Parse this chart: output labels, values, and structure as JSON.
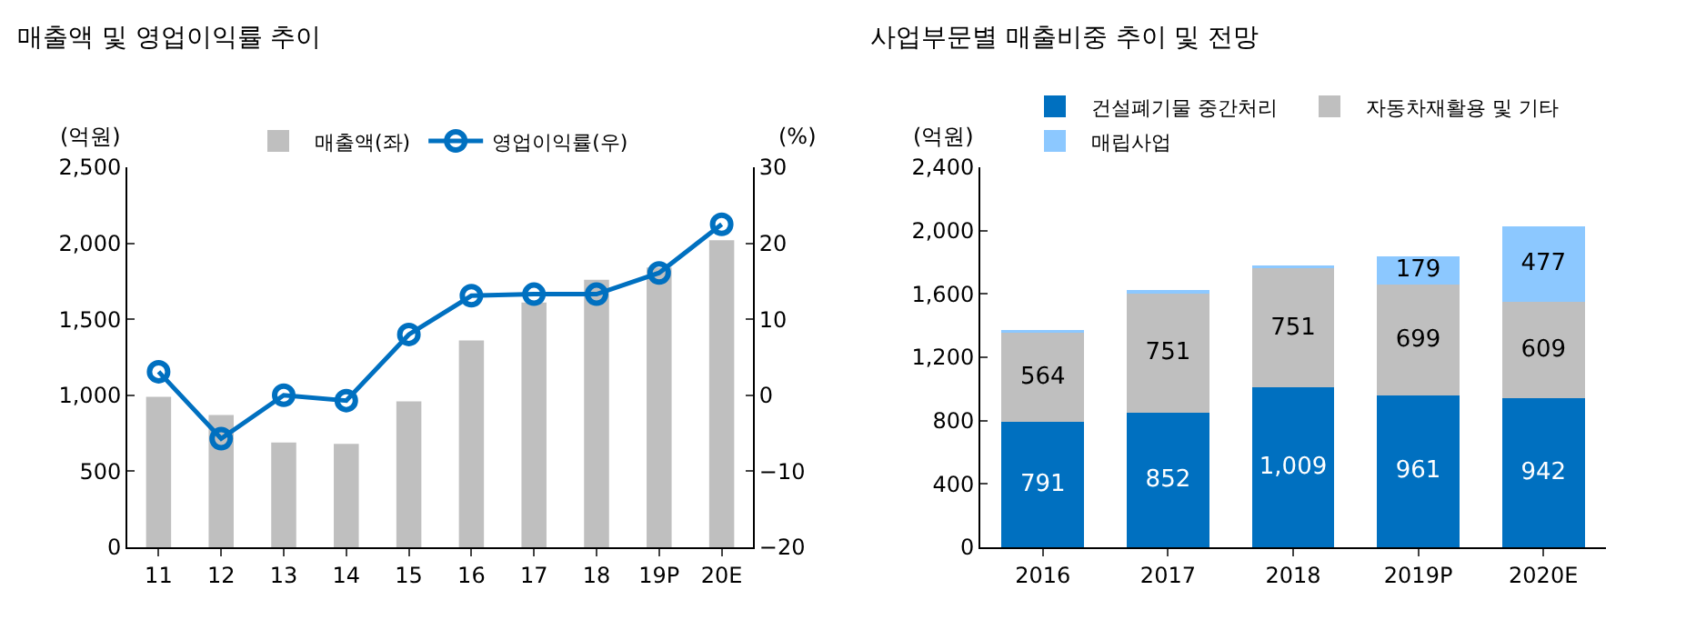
{
  "chart_data": [
    {
      "type": "bar",
      "title": "매출액 및 영업이익률 추이",
      "ylabel": "(억원)",
      "y2label": "(%)",
      "categories": [
        "11",
        "12",
        "13",
        "14",
        "15",
        "16",
        "17",
        "18",
        "19P",
        "20E"
      ],
      "series": [
        {
          "name": "매출액(좌)",
          "type": "bar",
          "color": "#bfbfbf",
          "values": [
            990,
            870,
            690,
            680,
            960,
            1360,
            1610,
            1760,
            1840,
            2020
          ]
        },
        {
          "name": "영업이익률(우)",
          "type": "line",
          "axis": "y2",
          "color": "#0070c0",
          "values": [
            3.1,
            -5.7,
            0,
            -0.7,
            8.0,
            13.1,
            13.3,
            13.3,
            16.1,
            22.5
          ]
        }
      ],
      "ylim": [
        0,
        2500
      ],
      "yticks": [
        0,
        {
          "value": 500,
          "label": "500"
        },
        {
          "value": 1000,
          "label": "1,000"
        },
        {
          "value": 1500,
          "label": "1,500"
        },
        {
          "value": 2000,
          "label": "2,000"
        },
        {
          "value": 2500,
          "label": "2,500"
        }
      ],
      "y2lim": [
        -20,
        30
      ],
      "y2ticks": [
        {
          "value": -20,
          "label": "−20"
        },
        {
          "value": -10,
          "label": "−10"
        },
        0,
        10,
        20,
        30
      ],
      "grid": false,
      "legend": "top",
      "marker": "circle",
      "line_style": "solid"
    },
    {
      "type": "bar",
      "title": "사업부문별 매출비중 추이 및 전망",
      "ylabel": "(억원)",
      "stacked": true,
      "categories": [
        "2016",
        "2017",
        "2018",
        "2019P",
        "2020E"
      ],
      "series": [
        {
          "name": "건설폐기물 중간처리",
          "color": "#0070c0",
          "values": [
            791,
            852,
            1009,
            961,
            942
          ],
          "value_labels": [
            "791",
            "852",
            "1,009",
            "961",
            "942"
          ]
        },
        {
          "name": "자동차재활용 및 기타",
          "color": "#bfbfbf",
          "values": [
            564,
            751,
            751,
            699,
            609
          ],
          "value_labels": [
            "564",
            "751",
            "751",
            "699",
            "609"
          ]
        },
        {
          "name": "매립사업",
          "color": "#8cc8ff",
          "values": [
            20,
            20,
            20,
            179,
            477
          ],
          "value_labels": [
            null,
            null,
            null,
            "179",
            "477"
          ]
        }
      ],
      "ylim": [
        0,
        2400
      ],
      "yticks": [
        0,
        400,
        800,
        {
          "value": 1200,
          "label": "1,200"
        },
        {
          "value": 1600,
          "label": "1,600"
        },
        {
          "value": 2000,
          "label": "2,000"
        },
        {
          "value": 2400,
          "label": "2,400"
        }
      ],
      "grid": false,
      "legend": "top"
    }
  ]
}
